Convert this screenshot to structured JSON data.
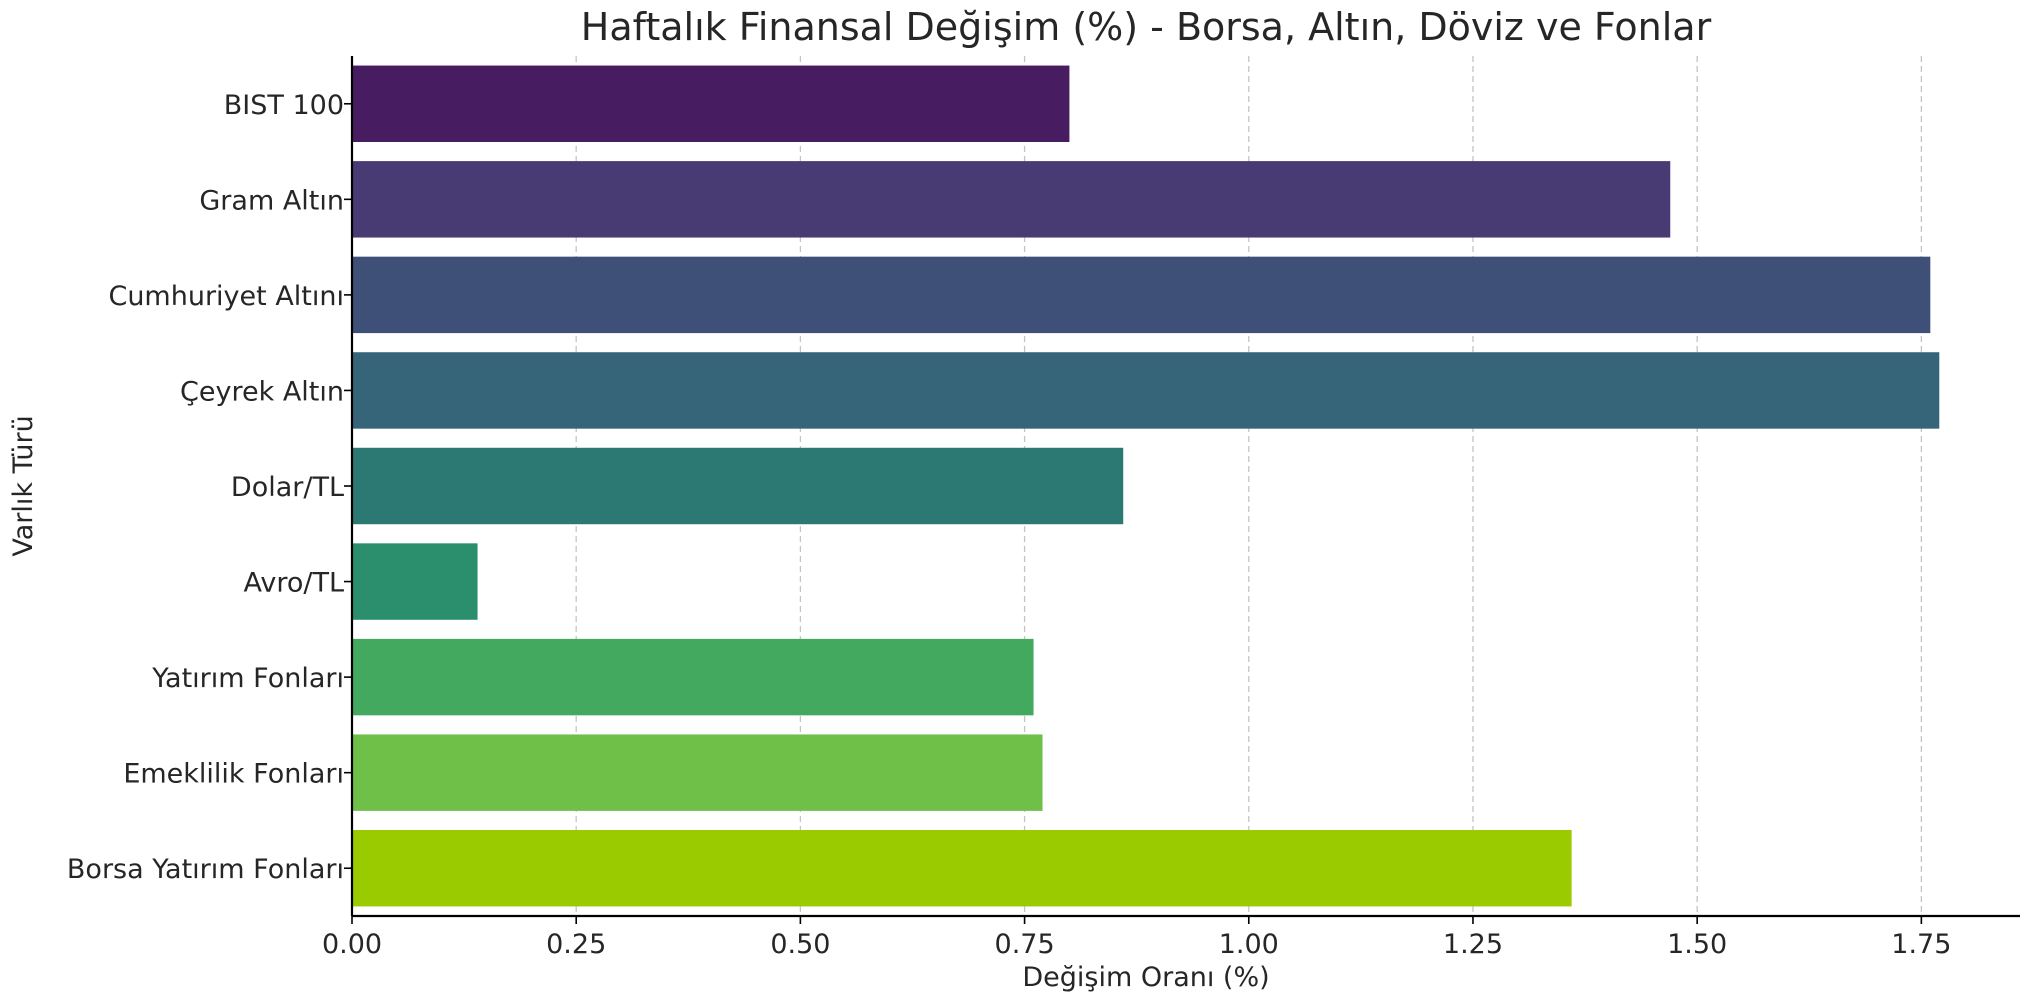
{
  "chart_data": {
    "type": "bar",
    "orientation": "horizontal",
    "title": "Haftalık Finansal Değişim (%) - Borsa, Altın, Döviz ve Fonlar",
    "xlabel": "Değişim Oranı (%)",
    "ylabel": "Varlık Türü",
    "categories": [
      "BIST 100",
      "Gram Altın",
      "Cumhuriyet Altını",
      "Çeyrek Altın",
      "Dolar/TL",
      "Avro/TL",
      "Yatırım Fonları",
      "Emeklilik Fonları",
      "Borsa Yatırım Fonları"
    ],
    "values": [
      0.8,
      1.47,
      1.76,
      1.77,
      0.86,
      0.14,
      0.76,
      0.77,
      1.36
    ],
    "colors": [
      "#481c61",
      "#483b74",
      "#3f5078",
      "#366579",
      "#2c7872",
      "#2b8e6d",
      "#43a95f",
      "#6ec049",
      "#9aca00"
    ],
    "xlim": [
      0,
      1.86
    ],
    "xticks": [
      0.0,
      0.25,
      0.5,
      0.75,
      1.0,
      1.25,
      1.5,
      1.75
    ],
    "xtick_labels": [
      "0.00",
      "0.25",
      "0.50",
      "0.75",
      "1.00",
      "1.25",
      "1.50",
      "1.75"
    ],
    "grid": "x-dashed",
    "legend": "none"
  }
}
